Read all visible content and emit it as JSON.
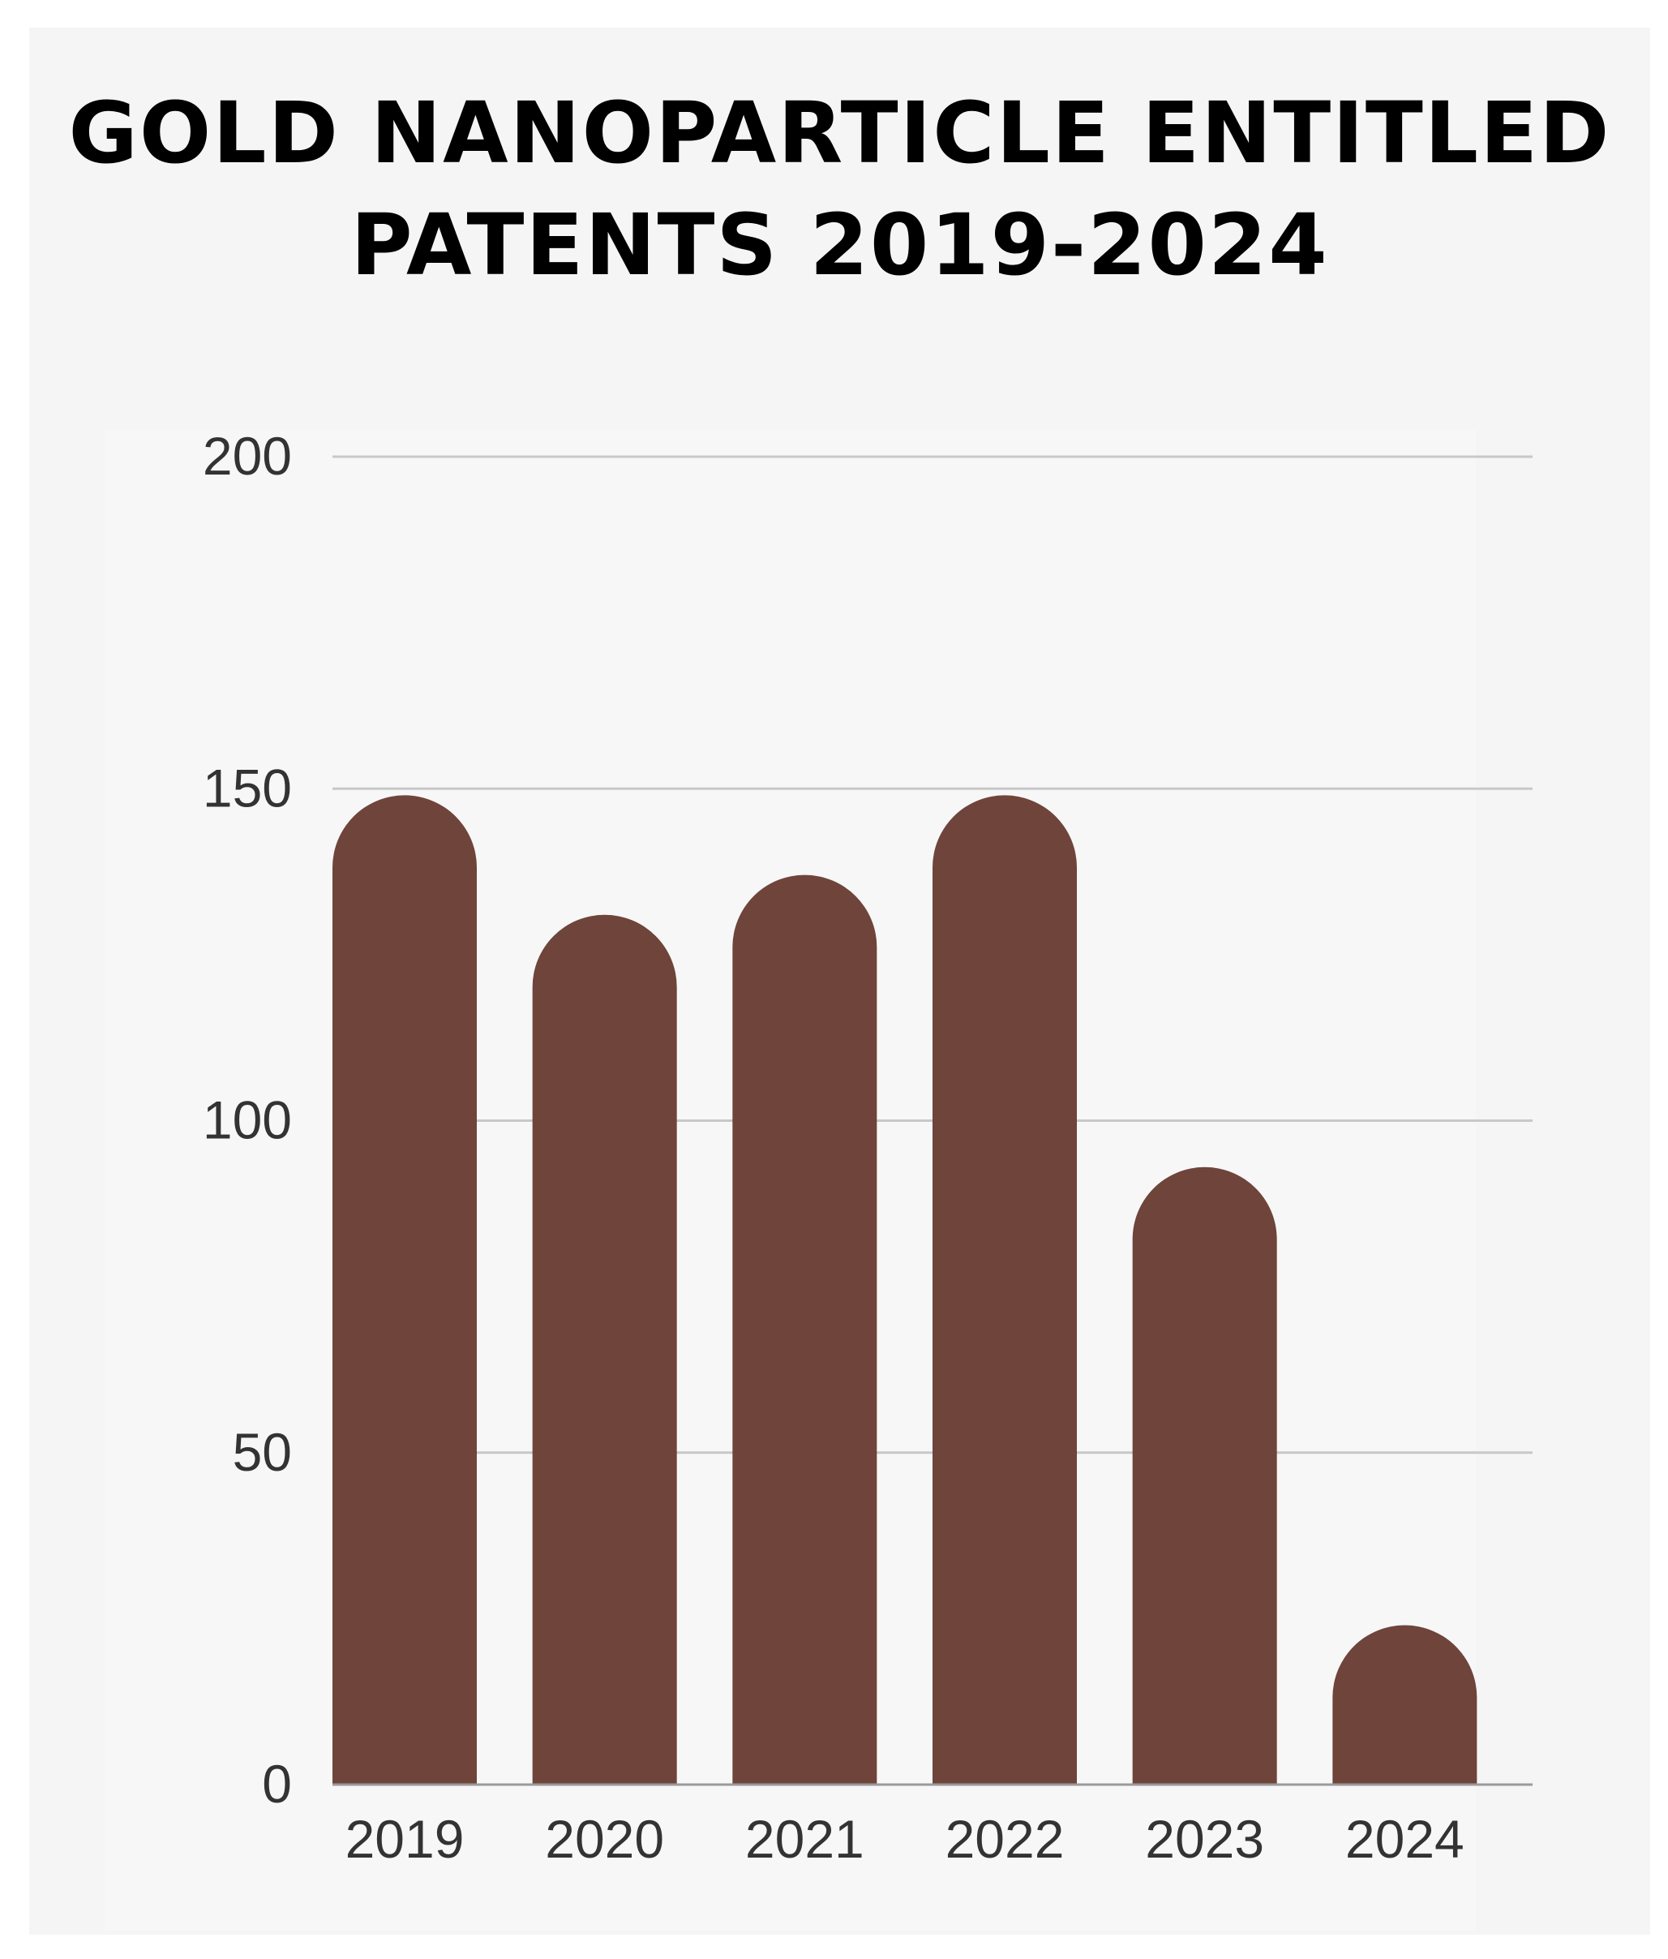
{
  "chart_data": {
    "type": "bar",
    "title_lines": [
      "GOLD NANOPARTICLE ENTITLED",
      "PATENTS 2019-2024"
    ],
    "categories": [
      "2019",
      "2020",
      "2021",
      "2022",
      "2023",
      "2024"
    ],
    "values": [
      149,
      131,
      137,
      149,
      93,
      24
    ],
    "xlabel": "",
    "ylabel": "",
    "ylim": [
      0,
      200
    ],
    "yticks": [
      0,
      50,
      100,
      150,
      200
    ],
    "ytick_labels": [
      "0",
      "50",
      "100",
      "150",
      "200"
    ],
    "grid": true,
    "legend": "none",
    "colors": {
      "bar": "#6f443b",
      "grid": "#c8c8c8",
      "plot_bg": "#f7f7f7"
    }
  }
}
